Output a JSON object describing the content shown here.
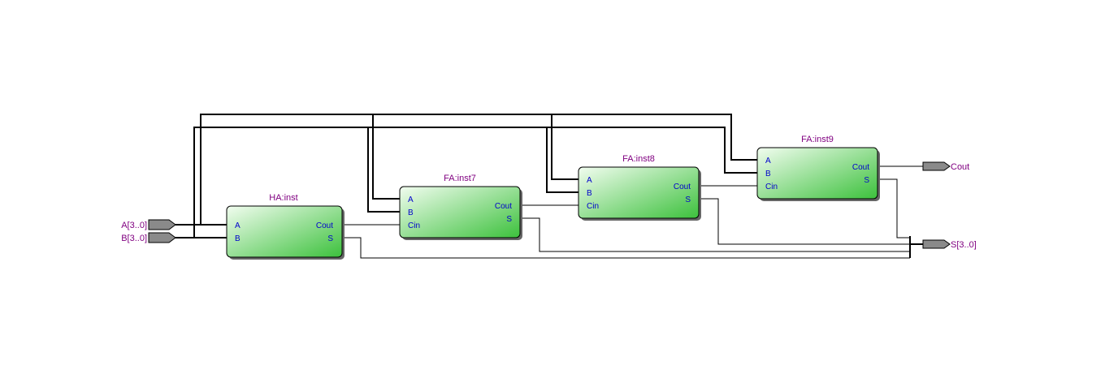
{
  "diagram": {
    "blocks": [
      {
        "id": "ha",
        "title": "HA:inst",
        "inputs": [
          "A",
          "B"
        ],
        "outputs": [
          "Cout",
          "S"
        ]
      },
      {
        "id": "fa7",
        "title": "FA:inst7",
        "inputs": [
          "A",
          "B",
          "Cin"
        ],
        "outputs": [
          "Cout",
          "S"
        ]
      },
      {
        "id": "fa8",
        "title": "FA:inst8",
        "inputs": [
          "A",
          "B",
          "Cin"
        ],
        "outputs": [
          "Cout",
          "S"
        ]
      },
      {
        "id": "fa9",
        "title": "FA:inst9",
        "inputs": [
          "A",
          "B",
          "Cin"
        ],
        "outputs": [
          "Cout",
          "S"
        ]
      }
    ],
    "input_pins": [
      {
        "id": "a",
        "label": "A[3..0]"
      },
      {
        "id": "b",
        "label": "B[3..0]"
      }
    ],
    "output_pins": [
      {
        "id": "cout",
        "label": "Cout"
      },
      {
        "id": "s",
        "label": "S[3..0]"
      }
    ],
    "colors": {
      "block_fill_light": "#eafbe6",
      "block_fill_dark": "#3fc23f",
      "title_color": "#800080",
      "port_color": "#0000cc",
      "pin_fill": "#8a8a8a"
    }
  }
}
